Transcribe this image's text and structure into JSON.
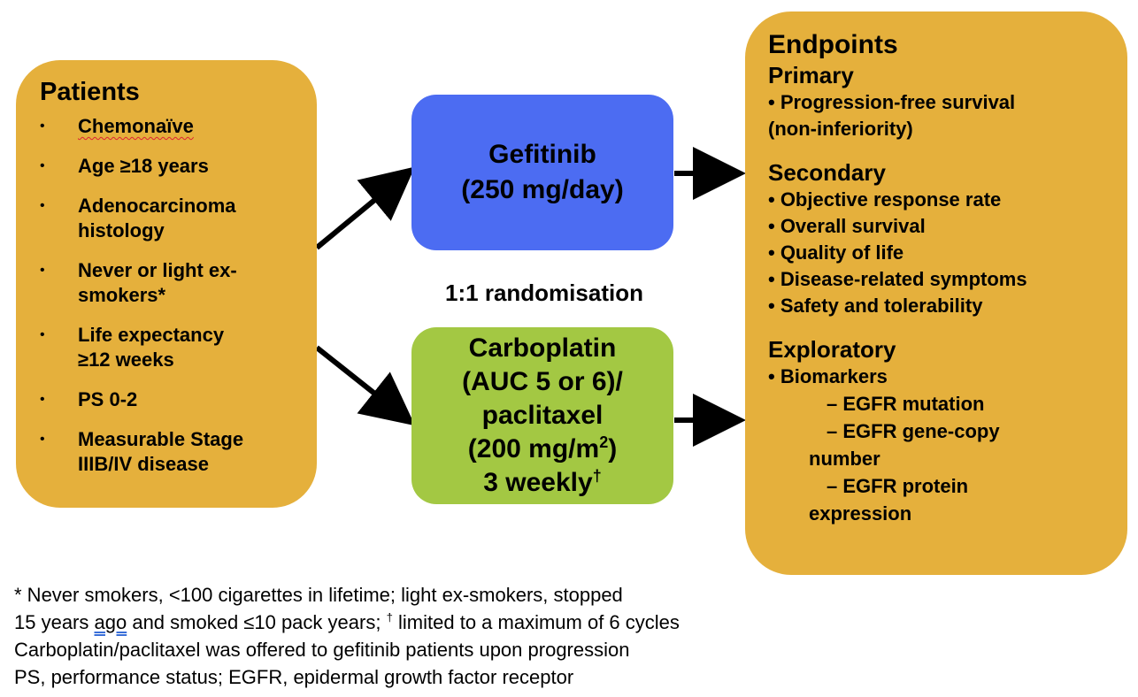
{
  "patients": {
    "title": "Patients",
    "items": [
      {
        "bullet": "•",
        "lines": [
          "Chemonaïve"
        ]
      },
      {
        "bullet": "•",
        "lines": [
          "Age ≥18 years"
        ]
      },
      {
        "bullet": "•",
        "lines": [
          "Adenocarcinoma",
          "histology"
        ]
      },
      {
        "bullet": "•",
        "lines": [
          "Never or light ex-",
          "smokers*"
        ]
      },
      {
        "bullet": "•",
        "lines": [
          "Life expectancy",
          "≥12 weeks"
        ]
      },
      {
        "bullet": "•",
        "lines": [
          "PS 0-2"
        ]
      },
      {
        "bullet": "•",
        "lines": [
          "Measurable Stage",
          "IIIB/IV disease"
        ]
      }
    ]
  },
  "gefitinib": {
    "line1": "Gefitinib",
    "line2": "(250 mg/day)"
  },
  "randomisation": "1:1 randomisation",
  "carboplatin": {
    "line1": "Carboplatin",
    "line2": "(AUC 5 or 6)/",
    "line3": "paclitaxel",
    "line4_pre": "(200 mg/m",
    "line4_sup": "2",
    "line4_post": ")",
    "line5_pre": "3 weekly",
    "line5_sup": "†"
  },
  "endpoints": {
    "title": "Endpoints",
    "primary": {
      "heading": "Primary",
      "items": [
        "• Progression-free survival",
        "(non-inferiority)"
      ]
    },
    "secondary": {
      "heading": "Secondary",
      "items": [
        "• Objective response rate",
        "• Overall survival",
        "• Quality of life",
        "• Disease-related symptoms",
        "• Safety and tolerability"
      ]
    },
    "exploratory": {
      "heading": "Exploratory",
      "item": "• Biomarkers",
      "subitems": [
        "– EGFR mutation",
        "– EGFR gene-copy",
        "number",
        "– EGFR protein",
        "expression"
      ]
    }
  },
  "footnotes": {
    "line1_mark": "*",
    "line1_text": " Never smokers, <100 cigarettes in lifetime; light ex-smokers, stopped",
    "line2_pre": "15 years ",
    "line2_ago": "ago",
    "line2_mid": " and smoked ≤10 pack years; ",
    "line2_mark": "†",
    "line2_post": " limited to a maximum of 6 cycles",
    "line3": "Carboplatin/paclitaxel was offered to gefitinib patients upon progression",
    "line4": "PS, performance status; EGFR, epidermal growth factor receptor"
  },
  "colors": {
    "orange_box": "#E5B03C",
    "blue_box": "#4C6CF2",
    "green_box": "#A3C843",
    "arrow": "#000000"
  }
}
